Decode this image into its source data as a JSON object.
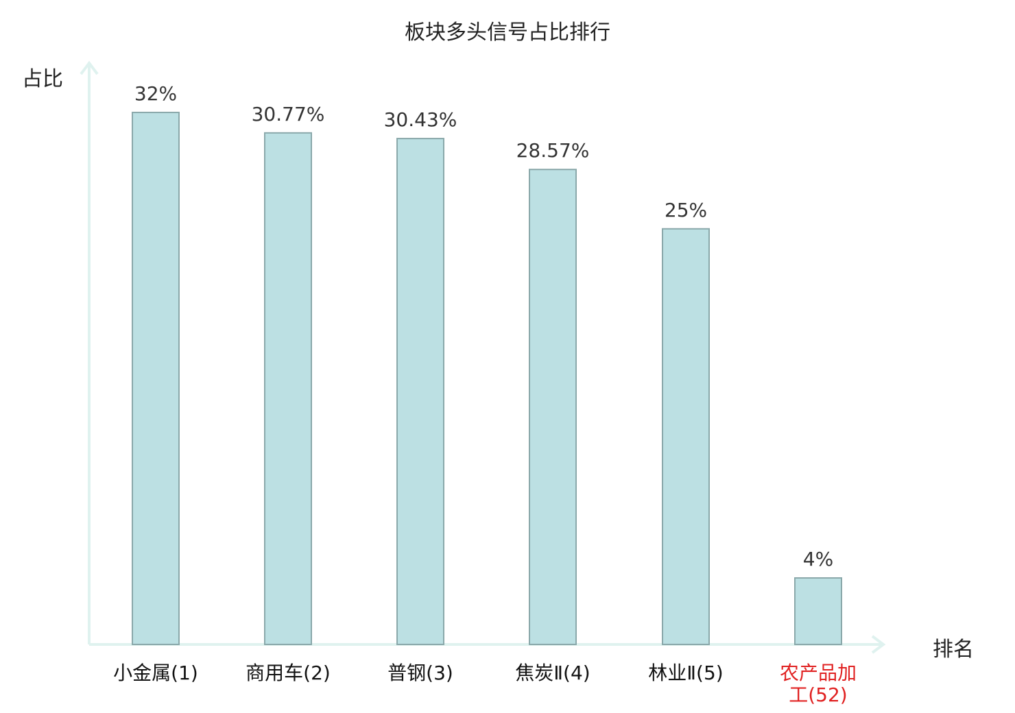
{
  "chart_data": {
    "type": "bar",
    "title": "板块多头信号占比排行",
    "ylabel": "占比",
    "xlabel": "排名",
    "categories": [
      "小金属(1)",
      "商用车(2)",
      "普钢(3)",
      "焦炭Ⅱ(4)",
      "林业Ⅱ(5)",
      "农产品加工(52)"
    ],
    "category_lines": [
      [
        "小金属(1)"
      ],
      [
        "商用车(2)"
      ],
      [
        "普钢(3)"
      ],
      [
        "焦炭Ⅱ(4)"
      ],
      [
        "林业Ⅱ(5)"
      ],
      [
        "农产品加",
        "工(52)"
      ]
    ],
    "values": [
      32,
      30.77,
      30.43,
      28.57,
      25,
      4
    ],
    "value_labels": [
      "32%",
      "30.77%",
      "30.43%",
      "28.57%",
      "25%",
      "4%"
    ],
    "highlight_index": 5,
    "grid": false,
    "colors": {
      "bar_fill": "#bce0e3",
      "bar_stroke": "#8aa8aa",
      "axis": "#dff2ef",
      "label": "#333333",
      "highlight": "#e02020"
    }
  }
}
